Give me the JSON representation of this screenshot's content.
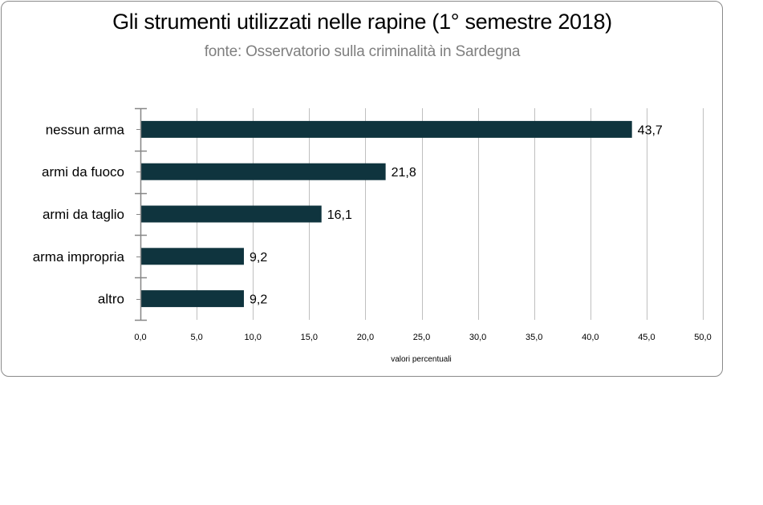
{
  "chart_data": {
    "type": "bar",
    "orientation": "horizontal",
    "title": "Gli  strumenti utilizzati nelle rapine (1° semestre 2018)",
    "subtitle": "fonte: Osservatorio sulla criminalità in Sardegna",
    "categories": [
      "nessun arma",
      "armi da fuoco",
      "armi da taglio",
      "arma impropria",
      "altro"
    ],
    "values": [
      43.7,
      21.8,
      16.1,
      9.2,
      9.2
    ],
    "value_labels": [
      "43,7",
      "21,8",
      "16,1",
      "9,2",
      "9,2"
    ],
    "xlabel": "valori percentuali",
    "ylabel": "",
    "xlim": [
      0,
      50
    ],
    "x_ticks": [
      0,
      5,
      10,
      15,
      20,
      25,
      30,
      35,
      40,
      45,
      50
    ],
    "x_tick_labels": [
      "0,0",
      "5,0",
      "10,0",
      "15,0",
      "20,0",
      "25,0",
      "30,0",
      "35,0",
      "40,0",
      "45,0",
      "50,0"
    ],
    "grid": "vertical major gridlines",
    "legend": "none",
    "bar_color": "#0f343e",
    "grid_color": "#bfbfbf",
    "axis_color": "#868686"
  }
}
